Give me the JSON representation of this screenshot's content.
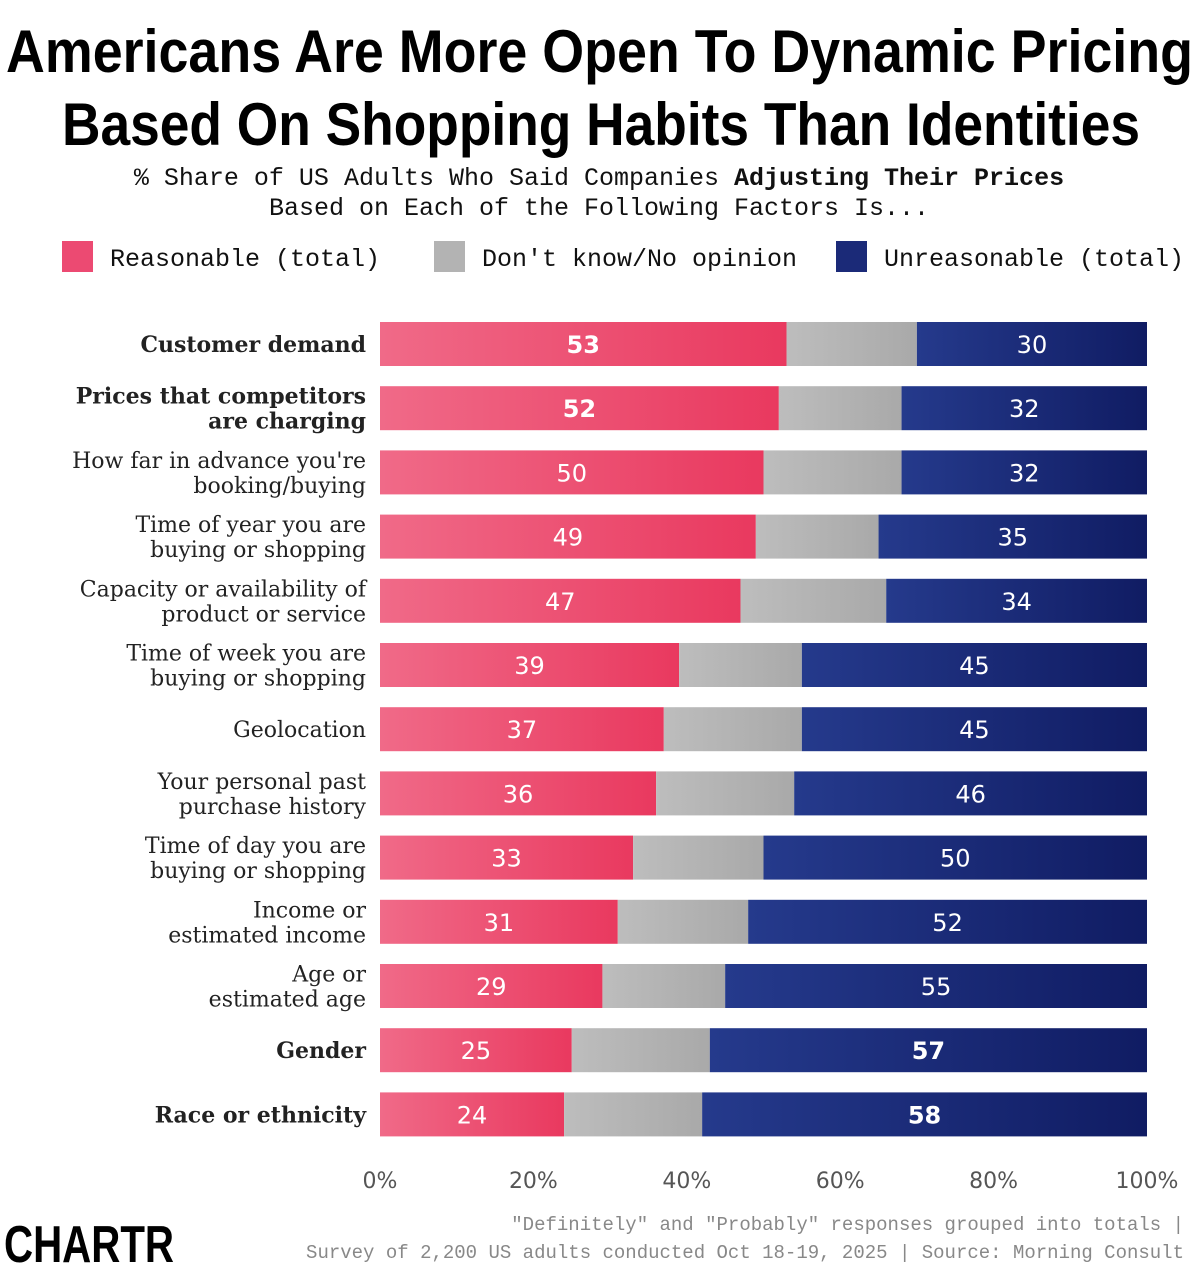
{
  "chart_data": {
    "type": "bar",
    "orientation": "horizontal-stacked-100",
    "title": [
      "Americans Are More Open To Dynamic Pricing",
      "Based On Shopping Habits Than Identities"
    ],
    "subtitle": {
      "line1_prefix": "% Share of US Adults Who Said Companies ",
      "line1_bold": "Adjusting Their Prices",
      "line2": "Based on Each of the Following Factors Is..."
    },
    "legend": [
      {
        "name": "Reasonable (total)",
        "color": "#ec4a72"
      },
      {
        "name": "Don't know/No opinion",
        "color": "#b3b3b3"
      },
      {
        "name": "Unreasonable (total)",
        "color": "#1b2a78"
      }
    ],
    "categories": [
      {
        "lines": [
          "Customer demand"
        ],
        "bold": true
      },
      {
        "lines": [
          "Prices that competitors",
          "are charging"
        ],
        "bold": true
      },
      {
        "lines": [
          "How far in advance you're",
          "booking/buying"
        ],
        "bold": false
      },
      {
        "lines": [
          "Time of year you are",
          "buying or shopping"
        ],
        "bold": false
      },
      {
        "lines": [
          "Capacity or availability of",
          "product or service"
        ],
        "bold": false
      },
      {
        "lines": [
          "Time of week you are",
          "buying or shopping"
        ],
        "bold": false
      },
      {
        "lines": [
          "Geolocation"
        ],
        "bold": false
      },
      {
        "lines": [
          "Your personal past",
          "purchase history"
        ],
        "bold": false
      },
      {
        "lines": [
          "Time of day you are",
          "buying or shopping"
        ],
        "bold": false
      },
      {
        "lines": [
          "Income or",
          "estimated income"
        ],
        "bold": false
      },
      {
        "lines": [
          "Age or",
          "estimated age"
        ],
        "bold": false
      },
      {
        "lines": [
          "Gender"
        ],
        "bold": true
      },
      {
        "lines": [
          "Race or ethnicity"
        ],
        "bold": true
      }
    ],
    "series": [
      {
        "name": "Reasonable (total)",
        "values": [
          53,
          52,
          50,
          49,
          47,
          39,
          37,
          36,
          33,
          31,
          29,
          25,
          24
        ],
        "bold_labels": [
          true,
          true,
          false,
          false,
          false,
          false,
          false,
          false,
          false,
          false,
          false,
          false,
          false
        ]
      },
      {
        "name": "Don't know/No opinion",
        "values": [
          17,
          16,
          18,
          16,
          19,
          16,
          18,
          18,
          17,
          17,
          16,
          18,
          18
        ]
      },
      {
        "name": "Unreasonable (total)",
        "values": [
          30,
          32,
          32,
          35,
          34,
          45,
          45,
          46,
          50,
          52,
          55,
          57,
          58
        ],
        "bold_labels": [
          false,
          false,
          false,
          false,
          false,
          false,
          false,
          false,
          false,
          false,
          false,
          true,
          true
        ]
      }
    ],
    "xlim": [
      0,
      100
    ],
    "xticks": [
      "0%",
      "20%",
      "40%",
      "60%",
      "80%",
      "100%"
    ],
    "grid": false
  },
  "footer": {
    "note": "\"Definitely\" and \"Probably\" responses grouped into totals |",
    "source": "Survey of 2,200 US adults conducted Oct 18-19, 2025 | Source: Morning Consult",
    "logo": "CHARTR"
  }
}
